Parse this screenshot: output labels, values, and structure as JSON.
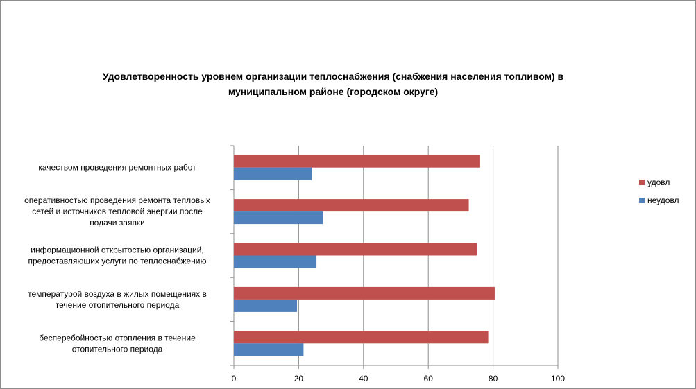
{
  "chart_data": {
    "type": "bar",
    "orientation": "horizontal",
    "title": "Удовлетворенность уровнем организации теплоснабжения (снабжения населения топливом) в муниципальном районе (городском округе)",
    "title_lines": [
      "Удовлетворенность уровнем организации теплоснабжения (снабжения населения топливом) в",
      "муниципальном районе (городском округе)"
    ],
    "categories": [
      "качеством проведения ремонтных работ",
      "оперативностью проведения ремонта тепловых сетей и источников тепловой энергии после подачи заявки",
      "информационной открытостью организаций, предоставляющих услуги по теплоснабжению",
      "температурой воздуха в жилых помещениях в течение отопительного периода",
      "бесперебойностью отопления в течение отопительного периода"
    ],
    "category_lines": [
      [
        "качеством проведения ремонтных работ"
      ],
      [
        "оперативностью проведения ремонта тепловых",
        "сетей и источников тепловой энергии после",
        "подачи заявки"
      ],
      [
        "информационной открытостью организаций,",
        "предоставляющих услуги по теплоснабжению"
      ],
      [
        "температурой воздуха в жилых помещениях в",
        "течение отопительного периода"
      ],
      [
        "бесперебойностью отопления в течение",
        "отопительного периода"
      ]
    ],
    "series": [
      {
        "name": "удовл",
        "color": "#c0504d",
        "values": [
          76,
          72.5,
          75,
          80.5,
          78.5
        ]
      },
      {
        "name": "неудовл",
        "color": "#4f81bd",
        "values": [
          24,
          27.5,
          25.5,
          19.5,
          21.5
        ]
      }
    ],
    "xlim": [
      0,
      100
    ],
    "xticks": [
      0,
      20,
      40,
      60,
      80,
      100
    ],
    "xtick_labels": [
      "0",
      "20",
      "40",
      "60",
      "80",
      "100"
    ],
    "grid": true,
    "legend_position": "right"
  }
}
